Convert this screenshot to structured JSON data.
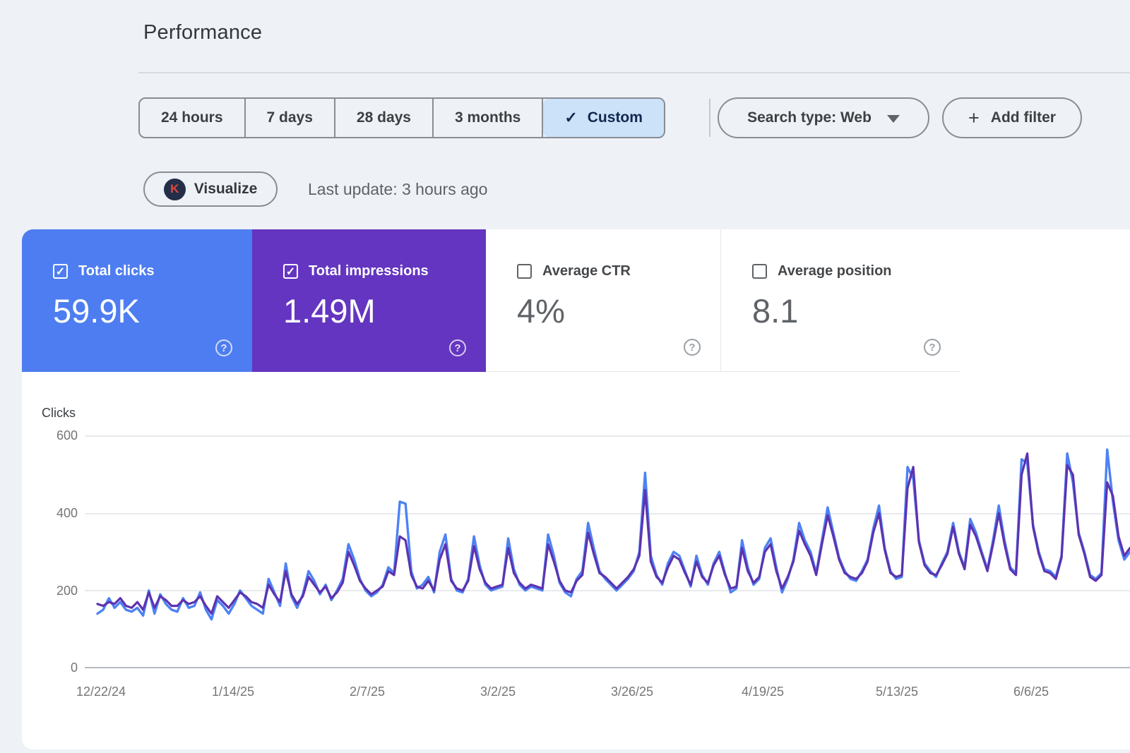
{
  "page": {
    "title": "Performance",
    "background": "#eef1f5"
  },
  "filters": {
    "time_ranges": [
      {
        "label": "24 hours",
        "selected": false
      },
      {
        "label": "7 days",
        "selected": false
      },
      {
        "label": "28 days",
        "selected": false
      },
      {
        "label": "3 months",
        "selected": false
      },
      {
        "label": "Custom",
        "selected": true
      }
    ],
    "selected_tab_bg": "#cbe2f9",
    "search_type_label": "Search type: Web",
    "add_filter_label": "Add filter",
    "plus_glyph": "+",
    "check_glyph": "✓"
  },
  "toolbar": {
    "visualize_label": "Visualize",
    "visualize_badge_letter": "K",
    "visualize_badge_bg": "#232e47",
    "visualize_badge_fg": "#e0473f",
    "last_update": "Last update: 3 hours ago"
  },
  "metric_cards": [
    {
      "label": "Total clicks",
      "value": "59.9K",
      "checked": true,
      "bg": "#4d7df0",
      "help_glyph": "?"
    },
    {
      "label": "Total impressions",
      "value": "1.49M",
      "checked": true,
      "bg": "#6435c0",
      "help_glyph": "?"
    },
    {
      "label": "Average CTR",
      "value": "4%",
      "checked": false,
      "bg": "",
      "help_glyph": "?"
    },
    {
      "label": "Average position",
      "value": "8.1",
      "checked": false,
      "bg": "",
      "help_glyph": "?"
    }
  ],
  "chart_data": {
    "type": "line",
    "ylabel": "Clicks",
    "ylim": [
      0,
      600
    ],
    "yticks": [
      600,
      400,
      200,
      0
    ],
    "ytick_labels": [
      "600",
      "400",
      "200",
      "0"
    ],
    "x_tick_labels": [
      "12/22/24",
      "1/14/25",
      "2/7/25",
      "3/2/25",
      "3/26/25",
      "4/19/25",
      "5/13/25",
      "6/6/25"
    ],
    "x_start_date": "12/22/24",
    "x_interval_days": 1,
    "grid": true,
    "legend_position": "none",
    "series": [
      {
        "name": "Total clicks",
        "color": "#4e82f4",
        "values": [
          140,
          150,
          180,
          155,
          170,
          150,
          145,
          155,
          135,
          200,
          140,
          190,
          165,
          150,
          145,
          180,
          155,
          160,
          195,
          150,
          125,
          175,
          160,
          140,
          165,
          200,
          180,
          160,
          150,
          140,
          230,
          195,
          160,
          270,
          185,
          155,
          190,
          250,
          225,
          190,
          215,
          175,
          200,
          230,
          320,
          280,
          230,
          200,
          185,
          195,
          215,
          260,
          245,
          430,
          425,
          250,
          205,
          215,
          235,
          195,
          300,
          345,
          230,
          200,
          195,
          230,
          340,
          265,
          215,
          200,
          205,
          210,
          335,
          255,
          215,
          200,
          210,
          205,
          200,
          345,
          290,
          220,
          195,
          185,
          230,
          250,
          375,
          310,
          250,
          230,
          215,
          200,
          215,
          230,
          250,
          300,
          505,
          290,
          240,
          215,
          270,
          300,
          290,
          250,
          210,
          290,
          240,
          215,
          270,
          300,
          245,
          195,
          205,
          330,
          260,
          215,
          230,
          310,
          335,
          260,
          195,
          230,
          280,
          375,
          330,
          300,
          245,
          330,
          415,
          350,
          285,
          250,
          230,
          225,
          250,
          280,
          360,
          420,
          310,
          250,
          230,
          235,
          520,
          490,
          330,
          270,
          250,
          235,
          270,
          300,
          375,
          300,
          260,
          385,
          350,
          300,
          255,
          330,
          420,
          330,
          260,
          245,
          540,
          530,
          370,
          300,
          255,
          250,
          235,
          290,
          555,
          480,
          350,
          300,
          240,
          230,
          245,
          565,
          430,
          330,
          280,
          300
        ]
      },
      {
        "name": "Total impressions",
        "color": "#5c33b0",
        "values": [
          165,
          160,
          170,
          165,
          180,
          160,
          155,
          170,
          150,
          195,
          155,
          185,
          175,
          160,
          160,
          175,
          165,
          170,
          185,
          160,
          140,
          185,
          170,
          155,
          175,
          195,
          185,
          170,
          165,
          155,
          215,
          190,
          170,
          250,
          190,
          165,
          185,
          235,
          215,
          195,
          210,
          180,
          195,
          220,
          300,
          265,
          225,
          205,
          190,
          200,
          210,
          250,
          240,
          340,
          330,
          240,
          210,
          205,
          225,
          200,
          280,
          320,
          225,
          205,
          200,
          225,
          315,
          255,
          220,
          205,
          210,
          215,
          310,
          245,
          220,
          205,
          215,
          210,
          205,
          320,
          275,
          225,
          200,
          195,
          225,
          240,
          350,
          295,
          245,
          235,
          220,
          205,
          220,
          235,
          255,
          290,
          460,
          275,
          235,
          220,
          260,
          290,
          280,
          245,
          215,
          275,
          235,
          220,
          265,
          290,
          240,
          205,
          210,
          310,
          250,
          220,
          235,
          300,
          320,
          250,
          205,
          235,
          275,
          355,
          320,
          290,
          240,
          320,
          395,
          340,
          280,
          245,
          235,
          230,
          245,
          275,
          350,
          400,
          305,
          245,
          235,
          240,
          465,
          520,
          325,
          265,
          245,
          240,
          265,
          295,
          365,
          295,
          255,
          370,
          340,
          295,
          250,
          320,
          400,
          320,
          255,
          240,
          500,
          555,
          365,
          295,
          250,
          245,
          230,
          285,
          525,
          500,
          345,
          295,
          235,
          225,
          240,
          480,
          445,
          340,
          290,
          310
        ]
      }
    ]
  }
}
